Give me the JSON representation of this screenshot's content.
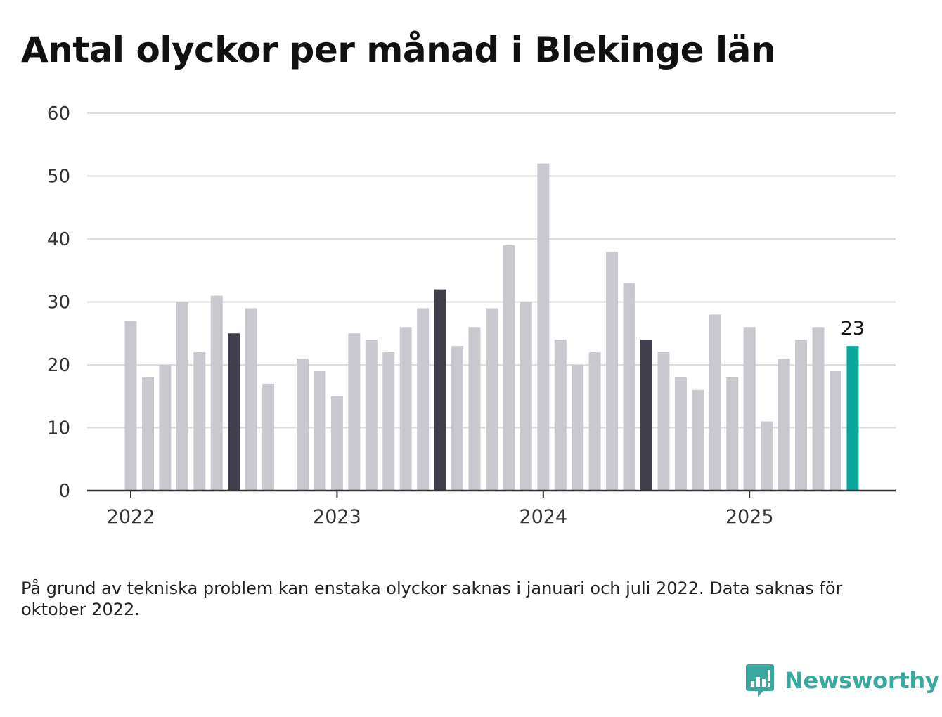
{
  "header": {
    "title": "Antal olyckor per månad i Blekinge län"
  },
  "footer": {
    "note": "På grund av tekniska problem kan enstaka olyckor saknas i januari och juli 2022. Data saknas för oktober 2022.",
    "brand": "Newsworthy",
    "brand_icon": "bar-chart-speech-bubble-icon"
  },
  "colors": {
    "default_bar": "#c9c8cf",
    "july_bar": "#3f3e4a",
    "latest_bar": "#0aa89b",
    "grid": "#dddddd",
    "axis": "#333333",
    "brand": "#3aa89c"
  },
  "chart_data": {
    "type": "bar",
    "title": "Antal olyckor per månad i Blekinge län",
    "xlabel": "",
    "ylabel": "",
    "ylim": [
      0,
      60
    ],
    "yticks": [
      0,
      10,
      20,
      30,
      40,
      50,
      60
    ],
    "xticks": [
      {
        "label": "2022",
        "month": "2022-01"
      },
      {
        "label": "2023",
        "month": "2023-01"
      },
      {
        "label": "2024",
        "month": "2024-01"
      },
      {
        "label": "2025",
        "month": "2025-01"
      }
    ],
    "grid": true,
    "highlight_label": {
      "month": "2025-07",
      "text": "23"
    },
    "bars": [
      {
        "month": "2022-01",
        "value": 27,
        "style": "default"
      },
      {
        "month": "2022-02",
        "value": 18,
        "style": "default"
      },
      {
        "month": "2022-03",
        "value": 20,
        "style": "default"
      },
      {
        "month": "2022-04",
        "value": 30,
        "style": "default"
      },
      {
        "month": "2022-05",
        "value": 22,
        "style": "default"
      },
      {
        "month": "2022-06",
        "value": 31,
        "style": "default"
      },
      {
        "month": "2022-07",
        "value": 25,
        "style": "july"
      },
      {
        "month": "2022-08",
        "value": 29,
        "style": "default"
      },
      {
        "month": "2022-09",
        "value": 17,
        "style": "default"
      },
      {
        "month": "2022-10",
        "value": null,
        "style": "missing"
      },
      {
        "month": "2022-11",
        "value": 21,
        "style": "default"
      },
      {
        "month": "2022-12",
        "value": 19,
        "style": "default"
      },
      {
        "month": "2023-01",
        "value": 15,
        "style": "default"
      },
      {
        "month": "2023-02",
        "value": 25,
        "style": "default"
      },
      {
        "month": "2023-03",
        "value": 24,
        "style": "default"
      },
      {
        "month": "2023-04",
        "value": 22,
        "style": "default"
      },
      {
        "month": "2023-05",
        "value": 26,
        "style": "default"
      },
      {
        "month": "2023-06",
        "value": 29,
        "style": "default"
      },
      {
        "month": "2023-07",
        "value": 32,
        "style": "july"
      },
      {
        "month": "2023-08",
        "value": 23,
        "style": "default"
      },
      {
        "month": "2023-09",
        "value": 26,
        "style": "default"
      },
      {
        "month": "2023-10",
        "value": 29,
        "style": "default"
      },
      {
        "month": "2023-11",
        "value": 39,
        "style": "default"
      },
      {
        "month": "2023-12",
        "value": 30,
        "style": "default"
      },
      {
        "month": "2024-01",
        "value": 52,
        "style": "default"
      },
      {
        "month": "2024-02",
        "value": 24,
        "style": "default"
      },
      {
        "month": "2024-03",
        "value": 20,
        "style": "default"
      },
      {
        "month": "2024-04",
        "value": 22,
        "style": "default"
      },
      {
        "month": "2024-05",
        "value": 38,
        "style": "default"
      },
      {
        "month": "2024-06",
        "value": 33,
        "style": "default"
      },
      {
        "month": "2024-07",
        "value": 24,
        "style": "july"
      },
      {
        "month": "2024-08",
        "value": 22,
        "style": "default"
      },
      {
        "month": "2024-09",
        "value": 18,
        "style": "default"
      },
      {
        "month": "2024-10",
        "value": 16,
        "style": "default"
      },
      {
        "month": "2024-11",
        "value": 28,
        "style": "default"
      },
      {
        "month": "2024-12",
        "value": 18,
        "style": "default"
      },
      {
        "month": "2025-01",
        "value": 26,
        "style": "default"
      },
      {
        "month": "2025-02",
        "value": 11,
        "style": "default"
      },
      {
        "month": "2025-03",
        "value": 21,
        "style": "default"
      },
      {
        "month": "2025-04",
        "value": 24,
        "style": "default"
      },
      {
        "month": "2025-05",
        "value": 26,
        "style": "default"
      },
      {
        "month": "2025-06",
        "value": 19,
        "style": "default"
      },
      {
        "month": "2025-07",
        "value": 23,
        "style": "latest"
      }
    ]
  }
}
